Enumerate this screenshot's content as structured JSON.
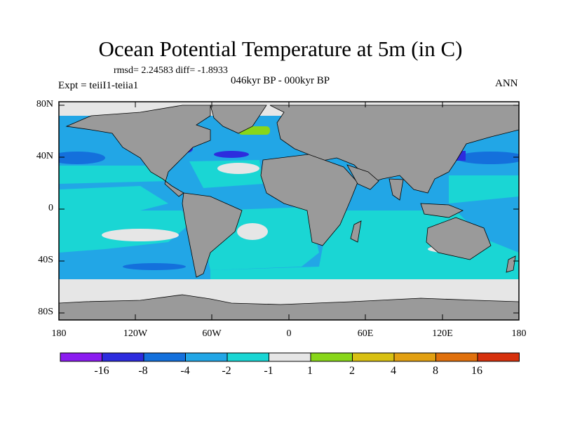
{
  "title": "Ocean Potential Temperature at 5m (in C)",
  "stats": "rmsd= 2.24583 diff= -1.8933",
  "experiment": "Expt = teiiI1-teiia1",
  "period": "046kyr BP - 000kyr BP",
  "season": "ANN",
  "lat_labels": [
    "80N",
    "40N",
    "0",
    "40S",
    "80S"
  ],
  "lon_labels": [
    "180",
    "120W",
    "60W",
    "0",
    "60E",
    "120E",
    "180"
  ],
  "colorbar": {
    "labels": [
      "-16",
      "-8",
      "-4",
      "-2",
      "-1",
      "1",
      "2",
      "4",
      "8",
      "16"
    ],
    "colors": [
      "#8b1cf0",
      "#2d2cde",
      "#1470dc",
      "#22a6e6",
      "#1ad6d4",
      "#e6e6e6",
      "#88d61a",
      "#d8c012",
      "#e2a012",
      "#e0700c",
      "#d6300c"
    ]
  },
  "colors": {
    "land": "#9a9a9a",
    "ocean_default": "#22a6e6",
    "frame": "#000000"
  }
}
